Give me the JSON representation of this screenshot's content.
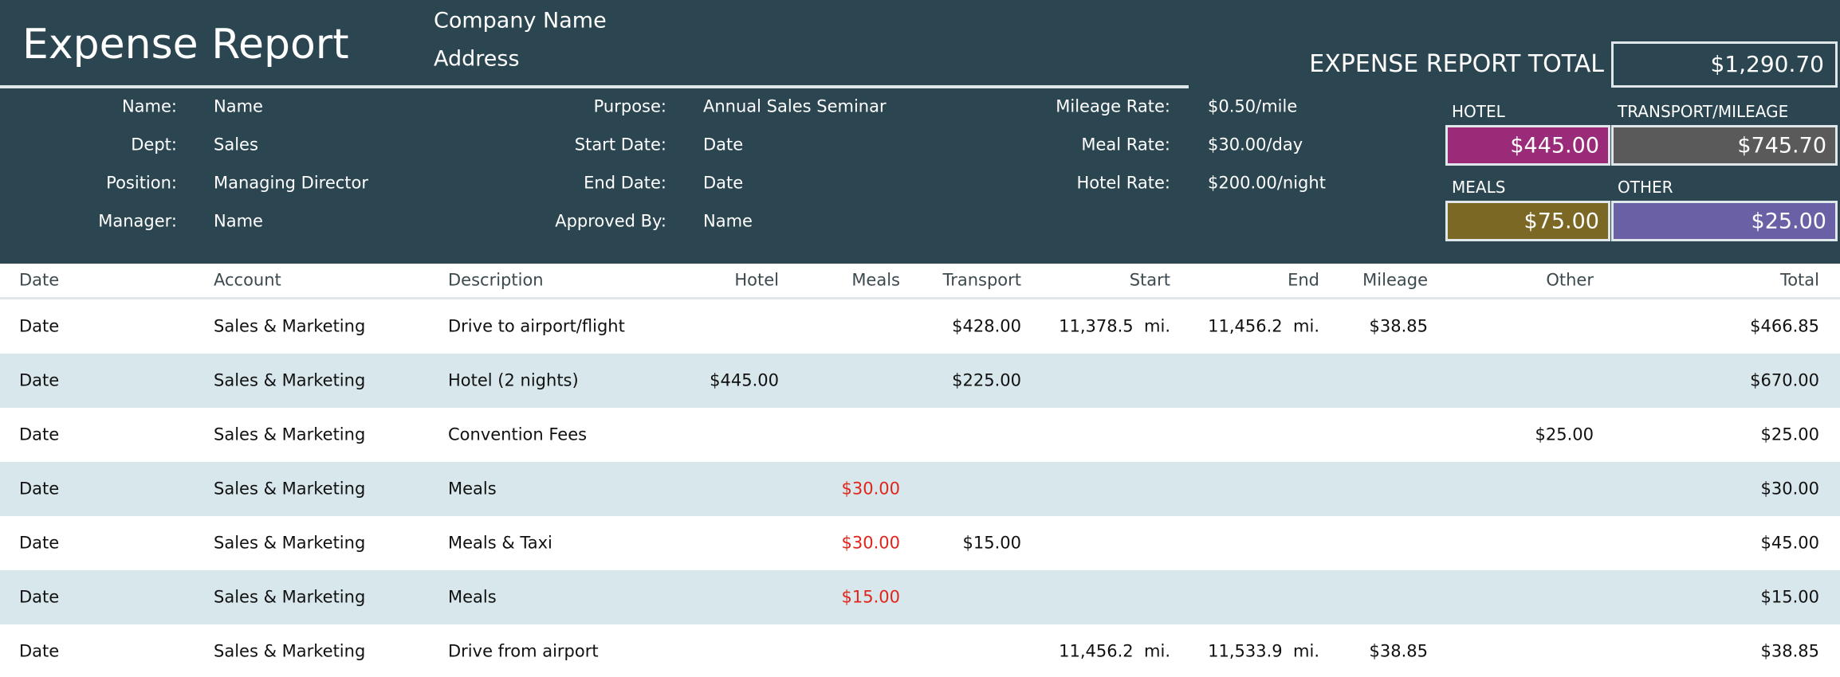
{
  "header": {
    "title": "Expense Report",
    "company": "Company Name",
    "address": "Address",
    "total_label": "EXPENSE REPORT TOTAL",
    "total_value": "$1,290.70"
  },
  "info": [
    [
      {
        "label": "Name:",
        "value": "Name"
      },
      {
        "label": "Purpose:",
        "value": "Annual Sales Seminar"
      },
      {
        "label": "Mileage Rate:",
        "value": "$0.50/mile"
      }
    ],
    [
      {
        "label": "Dept:",
        "value": "Sales"
      },
      {
        "label": "Start Date:",
        "value": "Date"
      },
      {
        "label": "Meal Rate:",
        "value": "$30.00/day"
      }
    ],
    [
      {
        "label": "Position:",
        "value": "Managing Director"
      },
      {
        "label": "End Date:",
        "value": "Date"
      },
      {
        "label": "Hotel Rate:",
        "value": "$200.00/night"
      }
    ],
    [
      {
        "label": "Manager:",
        "value": "Name"
      },
      {
        "label": "Approved By:",
        "value": "Name"
      }
    ]
  ],
  "categories": [
    {
      "label": "HOTEL",
      "value": "$445.00",
      "color": "#9a2b78"
    },
    {
      "label": "TRANSPORT/MILEAGE",
      "value": "$745.70",
      "color": "#5a5a5a"
    },
    {
      "label": "MEALS",
      "value": "$75.00",
      "color": "#7b6825"
    },
    {
      "label": "OTHER",
      "value": "$25.00",
      "color": "#6a60a6"
    }
  ],
  "table": {
    "columns": [
      "Date",
      "Account",
      "Description",
      "Hotel",
      "Meals",
      "Transport",
      "Start",
      "End",
      "Mileage",
      "Other",
      "Total"
    ],
    "rows": [
      [
        "Date",
        "Sales & Marketing",
        "Drive to airport/flight",
        null,
        null,
        "$428.00",
        "11,378.5  mi.",
        "11,456.2  mi.",
        "$38.85",
        null,
        "$466.85"
      ],
      [
        "Date",
        "Sales & Marketing",
        "Hotel (2 nights)",
        "$445.00",
        null,
        "$225.00",
        null,
        null,
        null,
        null,
        "$670.00"
      ],
      [
        "Date",
        "Sales & Marketing",
        "Convention Fees",
        null,
        null,
        null,
        null,
        null,
        null,
        "$25.00",
        "$25.00"
      ],
      [
        "Date",
        "Sales & Marketing",
        "Meals",
        null,
        "$30.00",
        null,
        null,
        null,
        null,
        null,
        "$30.00"
      ],
      [
        "Date",
        "Sales & Marketing",
        "Meals & Taxi",
        null,
        "$30.00",
        "$15.00",
        null,
        null,
        null,
        null,
        "$45.00"
      ],
      [
        "Date",
        "Sales & Marketing",
        "Meals",
        null,
        "$15.00",
        null,
        null,
        null,
        null,
        null,
        "$15.00"
      ],
      [
        "Date",
        "Sales & Marketing",
        "Drive from airport",
        null,
        null,
        null,
        "11,456.2  mi.",
        "11,533.9  mi.",
        "$38.85",
        null,
        "$38.85"
      ]
    ]
  }
}
